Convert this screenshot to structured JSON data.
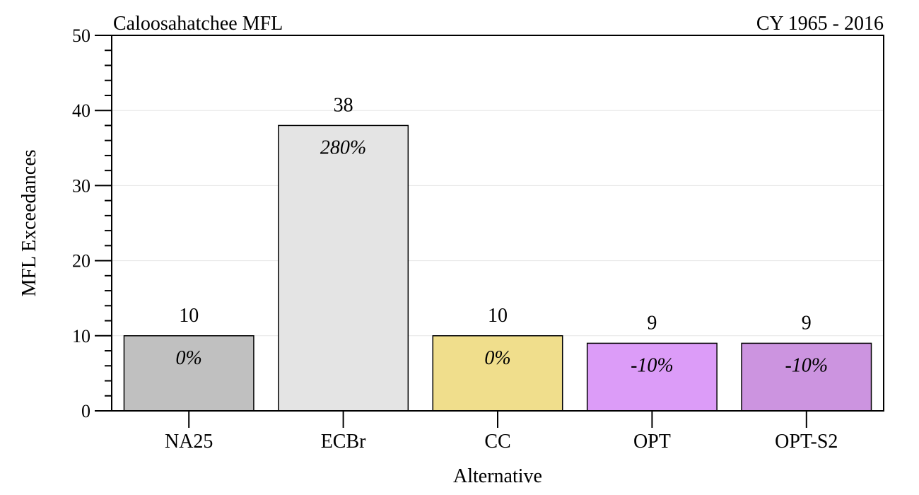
{
  "chart_data": {
    "type": "bar",
    "title_left": "Caloosahatchee MFL",
    "title_right": "CY 1965 - 2016",
    "xlabel": "Alternative",
    "ylabel": "MFL Exceedances",
    "ylim": [
      0,
      50
    ],
    "yticks": [
      0,
      10,
      20,
      30,
      40,
      50
    ],
    "grid": true,
    "categories": [
      "NA25",
      "ECBr",
      "CC",
      "OPT",
      "OPT-S2"
    ],
    "values": [
      10,
      38,
      10,
      9,
      9
    ],
    "percent_labels": [
      "0%",
      "280%",
      "0%",
      "-10%",
      "-10%"
    ],
    "colors": [
      "#c0c0c0",
      "#e4e4e4",
      "#f0de8c",
      "#dc9cf8",
      "#cc94e0"
    ]
  }
}
